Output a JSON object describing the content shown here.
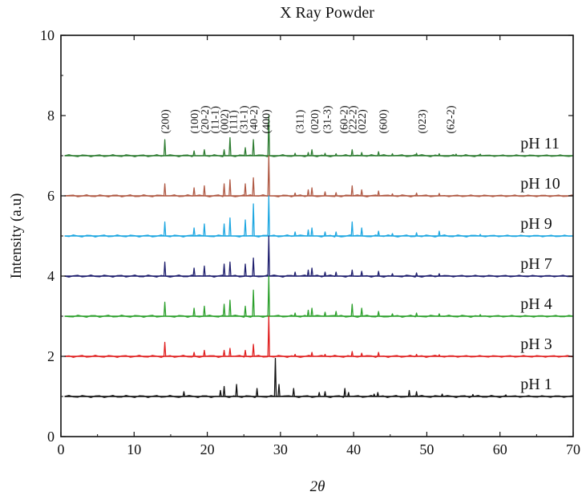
{
  "chart_data": {
    "type": "line",
    "title": "X Ray Powder",
    "xlabel": "2θ",
    "ylabel": "Intensity (a.u)",
    "xlim": [
      0,
      70
    ],
    "ylim": [
      0,
      10
    ],
    "xticks": [
      0,
      10,
      20,
      30,
      40,
      50,
      60,
      70
    ],
    "yticks": [
      0,
      2,
      4,
      6,
      8,
      10
    ],
    "grid": false,
    "series": [
      {
        "name": "pH 11",
        "color": "#2e7d32",
        "baseline": 7.0,
        "peaks": [
          [
            14.2,
            0.4
          ],
          [
            18.2,
            0.12
          ],
          [
            19.6,
            0.15
          ],
          [
            22.3,
            0.15
          ],
          [
            23.1,
            0.45
          ],
          [
            25.2,
            0.2
          ],
          [
            26.3,
            0.4
          ],
          [
            28.4,
            1.0
          ],
          [
            32.0,
            0.06
          ],
          [
            33.8,
            0.08
          ],
          [
            34.3,
            0.15
          ],
          [
            36.1,
            0.06
          ],
          [
            37.6,
            0.05
          ],
          [
            39.8,
            0.15
          ],
          [
            41.1,
            0.08
          ],
          [
            43.4,
            0.1
          ],
          [
            45.3,
            0.05
          ],
          [
            48.6,
            0.06
          ],
          [
            51.7,
            0.05
          ],
          [
            54.0,
            0.04
          ],
          [
            57.3,
            0.04
          ]
        ]
      },
      {
        "name": "pH 10",
        "color": "#b05a45",
        "baseline": 6.0,
        "peaks": [
          [
            14.2,
            0.3
          ],
          [
            18.2,
            0.2
          ],
          [
            19.6,
            0.25
          ],
          [
            22.3,
            0.3
          ],
          [
            23.1,
            0.4
          ],
          [
            25.2,
            0.3
          ],
          [
            26.3,
            0.45
          ],
          [
            28.4,
            1.0
          ],
          [
            32.0,
            0.07
          ],
          [
            33.8,
            0.15
          ],
          [
            34.3,
            0.2
          ],
          [
            36.1,
            0.1
          ],
          [
            37.6,
            0.08
          ],
          [
            39.8,
            0.25
          ],
          [
            41.1,
            0.15
          ],
          [
            43.4,
            0.12
          ],
          [
            45.3,
            0.05
          ],
          [
            48.6,
            0.07
          ],
          [
            51.7,
            0.06
          ]
        ]
      },
      {
        "name": "pH 9",
        "color": "#1ea7e1",
        "baseline": 5.0,
        "peaks": [
          [
            14.2,
            0.35
          ],
          [
            18.2,
            0.2
          ],
          [
            19.6,
            0.3
          ],
          [
            22.3,
            0.3
          ],
          [
            23.1,
            0.45
          ],
          [
            25.2,
            0.4
          ],
          [
            26.3,
            0.8
          ],
          [
            28.4,
            1.0
          ],
          [
            32.0,
            0.1
          ],
          [
            33.8,
            0.15
          ],
          [
            34.3,
            0.2
          ],
          [
            36.1,
            0.1
          ],
          [
            37.6,
            0.1
          ],
          [
            39.8,
            0.35
          ],
          [
            41.1,
            0.2
          ],
          [
            43.4,
            0.12
          ],
          [
            45.3,
            0.06
          ],
          [
            48.6,
            0.08
          ],
          [
            51.7,
            0.12
          ],
          [
            57.3,
            0.04
          ]
        ]
      },
      {
        "name": "pH 7",
        "color": "#1f1f6e",
        "baseline": 4.0,
        "peaks": [
          [
            14.2,
            0.35
          ],
          [
            18.2,
            0.2
          ],
          [
            19.6,
            0.25
          ],
          [
            22.3,
            0.3
          ],
          [
            23.1,
            0.35
          ],
          [
            25.2,
            0.3
          ],
          [
            26.3,
            0.45
          ],
          [
            28.4,
            1.0
          ],
          [
            32.0,
            0.1
          ],
          [
            33.8,
            0.15
          ],
          [
            34.3,
            0.2
          ],
          [
            36.1,
            0.1
          ],
          [
            37.6,
            0.1
          ],
          [
            39.8,
            0.15
          ],
          [
            41.1,
            0.12
          ],
          [
            43.4,
            0.12
          ],
          [
            45.3,
            0.06
          ],
          [
            48.6,
            0.08
          ],
          [
            51.7,
            0.06
          ]
        ]
      },
      {
        "name": "pH 4",
        "color": "#2ca02c",
        "baseline": 3.0,
        "peaks": [
          [
            14.2,
            0.35
          ],
          [
            18.2,
            0.2
          ],
          [
            19.6,
            0.25
          ],
          [
            22.3,
            0.3
          ],
          [
            23.1,
            0.4
          ],
          [
            25.2,
            0.25
          ],
          [
            26.3,
            0.65
          ],
          [
            28.4,
            1.0
          ],
          [
            32.0,
            0.08
          ],
          [
            33.8,
            0.15
          ],
          [
            34.3,
            0.2
          ],
          [
            36.1,
            0.1
          ],
          [
            37.6,
            0.12
          ],
          [
            39.8,
            0.3
          ],
          [
            41.1,
            0.2
          ],
          [
            43.4,
            0.12
          ],
          [
            45.3,
            0.06
          ],
          [
            48.6,
            0.08
          ],
          [
            51.7,
            0.06
          ],
          [
            57.3,
            0.04
          ]
        ]
      },
      {
        "name": "pH 3",
        "color": "#e02020",
        "baseline": 2.0,
        "peaks": [
          [
            14.2,
            0.35
          ],
          [
            18.2,
            0.1
          ],
          [
            19.6,
            0.15
          ],
          [
            22.3,
            0.15
          ],
          [
            23.1,
            0.2
          ],
          [
            25.2,
            0.15
          ],
          [
            26.3,
            0.3
          ],
          [
            28.4,
            1.0
          ],
          [
            32.0,
            0.05
          ],
          [
            34.3,
            0.1
          ],
          [
            36.1,
            0.05
          ],
          [
            39.8,
            0.12
          ],
          [
            41.1,
            0.08
          ],
          [
            43.4,
            0.1
          ],
          [
            48.6,
            0.05
          ],
          [
            51.7,
            0.04
          ]
        ]
      },
      {
        "name": "pH 1",
        "color": "#111111",
        "baseline": 1.0,
        "peaks": [
          [
            16.8,
            0.12
          ],
          [
            21.8,
            0.15
          ],
          [
            22.3,
            0.25
          ],
          [
            24.0,
            0.3
          ],
          [
            26.8,
            0.2
          ],
          [
            29.3,
            0.95
          ],
          [
            29.8,
            0.3
          ],
          [
            31.8,
            0.2
          ],
          [
            35.3,
            0.1
          ],
          [
            36.1,
            0.12
          ],
          [
            38.8,
            0.2
          ],
          [
            39.3,
            0.1
          ],
          [
            42.8,
            0.06
          ],
          [
            43.3,
            0.1
          ],
          [
            47.6,
            0.15
          ],
          [
            48.6,
            0.12
          ],
          [
            52.1,
            0.06
          ],
          [
            56.3,
            0.05
          ],
          [
            60.8,
            0.04
          ]
        ]
      }
    ],
    "annotations": [
      {
        "text": "(200)",
        "x": 14.2
      },
      {
        "text": "(100)",
        "x": 18.2
      },
      {
        "text": "(20-2)",
        "x": 19.6
      },
      {
        "text": "(11-1)",
        "x": 21.0
      },
      {
        "text": "(002)",
        "x": 22.3
      },
      {
        "text": "(111)",
        "x": 23.5
      },
      {
        "text": "(31-1)",
        "x": 24.9
      },
      {
        "text": "(40-2)",
        "x": 26.3
      },
      {
        "text": "(400)",
        "x": 28.0
      },
      {
        "text": "(311)",
        "x": 32.6
      },
      {
        "text": "(020)",
        "x": 34.6
      },
      {
        "text": "(31-3)",
        "x": 36.3
      },
      {
        "text": "(60-2)",
        "x": 38.6
      },
      {
        "text": "(22-2)",
        "x": 39.8
      },
      {
        "text": "(022)",
        "x": 41.1
      },
      {
        "text": "(600)",
        "x": 44.0
      },
      {
        "text": "(023)",
        "x": 49.3
      },
      {
        "text": "(62-2)",
        "x": 53.2
      }
    ]
  }
}
